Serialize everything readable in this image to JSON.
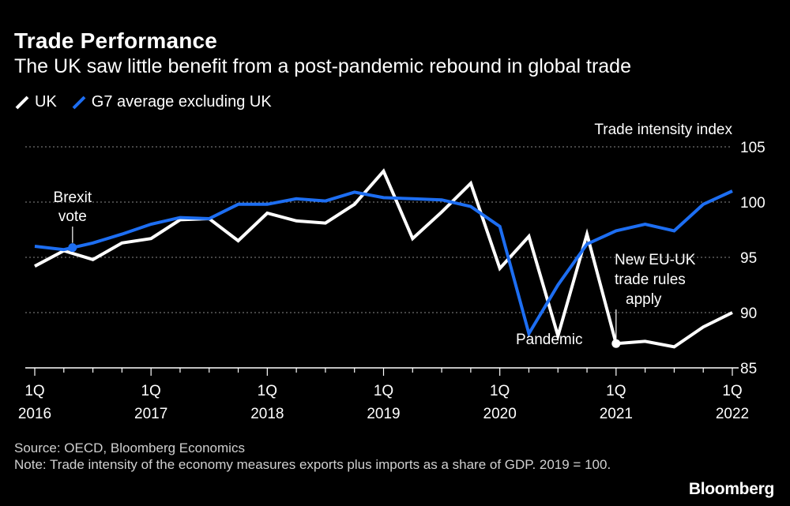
{
  "chart_data": {
    "type": "line",
    "title": "Trade Performance",
    "subtitle": "The UK saw little benefit from a post-pandemic rebound in global trade",
    "ylabel": "Trade intensity index",
    "ylim": [
      85,
      105
    ],
    "yticks": [
      85,
      90,
      95,
      100,
      105
    ],
    "grid": true,
    "legend_position": "top-left",
    "x_tick_labels": [
      {
        "index": 0,
        "line1": "1Q",
        "line2": "2016"
      },
      {
        "index": 4,
        "line1": "1Q",
        "line2": "2017"
      },
      {
        "index": 8,
        "line1": "1Q",
        "line2": "2018"
      },
      {
        "index": 12,
        "line1": "1Q",
        "line2": "2019"
      },
      {
        "index": 16,
        "line1": "1Q",
        "line2": "2020"
      },
      {
        "index": 20,
        "line1": "1Q",
        "line2": "2021"
      },
      {
        "index": 24,
        "line1": "1Q",
        "line2": "2022"
      }
    ],
    "x": [
      "1Q 2016",
      "2Q 2016",
      "3Q 2016",
      "4Q 2016",
      "1Q 2017",
      "2Q 2017",
      "3Q 2017",
      "4Q 2017",
      "1Q 2018",
      "2Q 2018",
      "3Q 2018",
      "4Q 2018",
      "1Q 2019",
      "2Q 2019",
      "3Q 2019",
      "4Q 2019",
      "1Q 2020",
      "2Q 2020",
      "3Q 2020",
      "4Q 2020",
      "1Q 2021",
      "2Q 2021",
      "3Q 2021",
      "4Q 2021",
      "1Q 2022"
    ],
    "series": [
      {
        "name": "UK",
        "color": "#ffffff",
        "values": [
          94.2,
          95.6,
          94.8,
          96.3,
          96.7,
          98.4,
          98.5,
          96.5,
          99.0,
          98.3,
          98.1,
          99.8,
          102.8,
          96.7,
          99.1,
          101.7,
          94.0,
          96.9,
          87.9,
          97.1,
          87.2,
          87.4,
          86.9,
          88.7,
          90.0
        ]
      },
      {
        "name": "G7 average excluding UK",
        "color": "#1d6ef2",
        "values": [
          96.0,
          95.7,
          96.3,
          97.1,
          98.0,
          98.6,
          98.5,
          99.8,
          99.8,
          100.3,
          100.1,
          100.9,
          100.4,
          100.3,
          100.2,
          99.6,
          97.8,
          88.1,
          92.5,
          96.2,
          97.4,
          98.0,
          97.4,
          99.8,
          101.0
        ]
      }
    ],
    "annotations": [
      {
        "text_lines": [
          "Brexit",
          "vote"
        ],
        "index": 1.3,
        "series": "G7 average excluding UK"
      },
      {
        "text_lines": [
          "Pandemic"
        ],
        "index": 17.7,
        "series": "none"
      },
      {
        "text_lines": [
          "New EU-UK",
          "trade rules",
          "apply"
        ],
        "index": 20,
        "series": "UK"
      }
    ]
  },
  "legend": {
    "uk_label": "UK",
    "g7_label": "G7 average excluding UK"
  },
  "footer": {
    "source": "Source: OECD, Bloomberg Economics",
    "note": "Note: Trade intensity of the economy measures exports plus imports as a share of GDP. 2019 = 100."
  },
  "brand": "Bloomberg"
}
